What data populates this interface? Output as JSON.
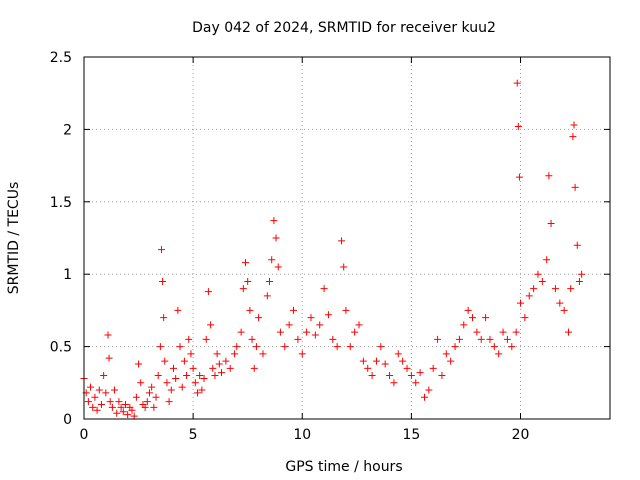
{
  "chart_data": {
    "type": "scatter",
    "title": "Day 042 of 2024, SRMTID for receiver kuu2",
    "xlabel": "GPS time / hours",
    "ylabel": "SRMTID / TECUs",
    "xlim": [
      0,
      24.1
    ],
    "ylim": [
      0,
      2.5
    ],
    "xticks": [
      0,
      5,
      10,
      15,
      20
    ],
    "xtick_labels": [
      "0",
      "5",
      "10",
      "15",
      "20"
    ],
    "yticks": [
      0,
      0.5,
      1,
      1.5,
      2,
      2.5
    ],
    "ytick_labels": [
      "0",
      "0.5",
      "1",
      "1.5",
      "2",
      "2.5"
    ],
    "grid": true,
    "marker": "+",
    "color": "#ff0000",
    "series": [
      {
        "name": "SRMTID",
        "points": [
          [
            0.0,
            0.28
          ],
          [
            0.1,
            0.18
          ],
          [
            0.2,
            0.12
          ],
          [
            0.3,
            0.22
          ],
          [
            0.4,
            0.08
          ],
          [
            0.5,
            0.15
          ],
          [
            0.6,
            0.06
          ],
          [
            0.7,
            0.2
          ],
          [
            0.8,
            0.1
          ],
          [
            0.9,
            0.3
          ],
          [
            1.0,
            0.18
          ],
          [
            1.1,
            0.58
          ],
          [
            1.15,
            0.42
          ],
          [
            1.2,
            0.12
          ],
          [
            1.3,
            0.08
          ],
          [
            1.4,
            0.2
          ],
          [
            1.5,
            0.04
          ],
          [
            1.6,
            0.12
          ],
          [
            1.7,
            0.08
          ],
          [
            1.8,
            0.05
          ],
          [
            1.9,
            0.1
          ],
          [
            2.0,
            0.03
          ],
          [
            2.1,
            0.08
          ],
          [
            2.2,
            0.06
          ],
          [
            2.3,
            0.02
          ],
          [
            2.4,
            0.15
          ],
          [
            2.5,
            0.38
          ],
          [
            2.6,
            0.25
          ],
          [
            2.7,
            0.1
          ],
          [
            2.8,
            0.08
          ],
          [
            2.9,
            0.12
          ],
          [
            3.0,
            0.18
          ],
          [
            3.1,
            0.22
          ],
          [
            3.2,
            0.08
          ],
          [
            3.3,
            0.15
          ],
          [
            3.4,
            0.3
          ],
          [
            3.5,
            0.5
          ],
          [
            3.55,
            1.17
          ],
          [
            3.6,
            0.95
          ],
          [
            3.65,
            0.7
          ],
          [
            3.7,
            0.4
          ],
          [
            3.8,
            0.25
          ],
          [
            3.9,
            0.12
          ],
          [
            4.0,
            0.2
          ],
          [
            4.1,
            0.35
          ],
          [
            4.2,
            0.28
          ],
          [
            4.3,
            0.75
          ],
          [
            4.4,
            0.5
          ],
          [
            4.5,
            0.22
          ],
          [
            4.6,
            0.4
          ],
          [
            4.7,
            0.3
          ],
          [
            4.8,
            0.55
          ],
          [
            4.9,
            0.45
          ],
          [
            5.0,
            0.35
          ],
          [
            5.1,
            0.25
          ],
          [
            5.2,
            0.18
          ],
          [
            5.3,
            0.3
          ],
          [
            5.4,
            0.2
          ],
          [
            5.5,
            0.28
          ],
          [
            5.6,
            0.55
          ],
          [
            5.7,
            0.88
          ],
          [
            5.8,
            0.65
          ],
          [
            5.9,
            0.35
          ],
          [
            6.0,
            0.3
          ],
          [
            6.1,
            0.45
          ],
          [
            6.2,
            0.38
          ],
          [
            6.3,
            0.32
          ],
          [
            6.5,
            0.4
          ],
          [
            6.7,
            0.35
          ],
          [
            6.9,
            0.45
          ],
          [
            7.0,
            0.5
          ],
          [
            7.2,
            0.6
          ],
          [
            7.3,
            0.9
          ],
          [
            7.4,
            1.08
          ],
          [
            7.5,
            0.95
          ],
          [
            7.6,
            0.75
          ],
          [
            7.7,
            0.55
          ],
          [
            7.8,
            0.35
          ],
          [
            7.9,
            0.5
          ],
          [
            8.0,
            0.7
          ],
          [
            8.2,
            0.45
          ],
          [
            8.4,
            0.85
          ],
          [
            8.5,
            0.95
          ],
          [
            8.6,
            1.1
          ],
          [
            8.7,
            1.37
          ],
          [
            8.8,
            1.25
          ],
          [
            8.9,
            1.05
          ],
          [
            9.0,
            0.6
          ],
          [
            9.2,
            0.5
          ],
          [
            9.4,
            0.65
          ],
          [
            9.6,
            0.75
          ],
          [
            9.8,
            0.55
          ],
          [
            10.0,
            0.45
          ],
          [
            10.2,
            0.6
          ],
          [
            10.4,
            0.7
          ],
          [
            10.6,
            0.58
          ],
          [
            10.8,
            0.65
          ],
          [
            11.0,
            0.9
          ],
          [
            11.2,
            0.72
          ],
          [
            11.4,
            0.55
          ],
          [
            11.6,
            0.5
          ],
          [
            11.8,
            1.23
          ],
          [
            11.9,
            1.05
          ],
          [
            12.0,
            0.75
          ],
          [
            12.2,
            0.5
          ],
          [
            12.4,
            0.6
          ],
          [
            12.6,
            0.65
          ],
          [
            12.8,
            0.4
          ],
          [
            13.0,
            0.35
          ],
          [
            13.2,
            0.3
          ],
          [
            13.4,
            0.4
          ],
          [
            13.6,
            0.5
          ],
          [
            13.8,
            0.38
          ],
          [
            14.0,
            0.3
          ],
          [
            14.2,
            0.25
          ],
          [
            14.4,
            0.45
          ],
          [
            14.6,
            0.4
          ],
          [
            14.8,
            0.35
          ],
          [
            15.0,
            0.3
          ],
          [
            15.2,
            0.25
          ],
          [
            15.4,
            0.32
          ],
          [
            15.6,
            0.15
          ],
          [
            15.8,
            0.2
          ],
          [
            16.0,
            0.35
          ],
          [
            16.2,
            0.55
          ],
          [
            16.4,
            0.3
          ],
          [
            16.6,
            0.45
          ],
          [
            16.8,
            0.4
          ],
          [
            17.0,
            0.5
          ],
          [
            17.2,
            0.55
          ],
          [
            17.4,
            0.65
          ],
          [
            17.6,
            0.75
          ],
          [
            17.8,
            0.7
          ],
          [
            18.0,
            0.6
          ],
          [
            18.2,
            0.55
          ],
          [
            18.4,
            0.7
          ],
          [
            18.6,
            0.55
          ],
          [
            18.8,
            0.5
          ],
          [
            19.0,
            0.45
          ],
          [
            19.2,
            0.6
          ],
          [
            19.4,
            0.55
          ],
          [
            19.6,
            0.5
          ],
          [
            19.8,
            0.6
          ],
          [
            19.85,
            2.32
          ],
          [
            19.9,
            2.02
          ],
          [
            19.95,
            1.67
          ],
          [
            20.0,
            0.8
          ],
          [
            20.2,
            0.7
          ],
          [
            20.4,
            0.85
          ],
          [
            20.6,
            0.9
          ],
          [
            20.8,
            1.0
          ],
          [
            21.0,
            0.95
          ],
          [
            21.2,
            1.1
          ],
          [
            21.3,
            1.68
          ],
          [
            21.4,
            1.35
          ],
          [
            21.6,
            0.9
          ],
          [
            21.8,
            0.8
          ],
          [
            22.0,
            0.75
          ],
          [
            22.2,
            0.6
          ],
          [
            22.3,
            0.9
          ],
          [
            22.4,
            1.95
          ],
          [
            22.45,
            2.03
          ],
          [
            22.5,
            1.6
          ],
          [
            22.6,
            1.2
          ],
          [
            22.7,
            0.95
          ],
          [
            22.8,
            1.0
          ]
        ]
      }
    ]
  }
}
